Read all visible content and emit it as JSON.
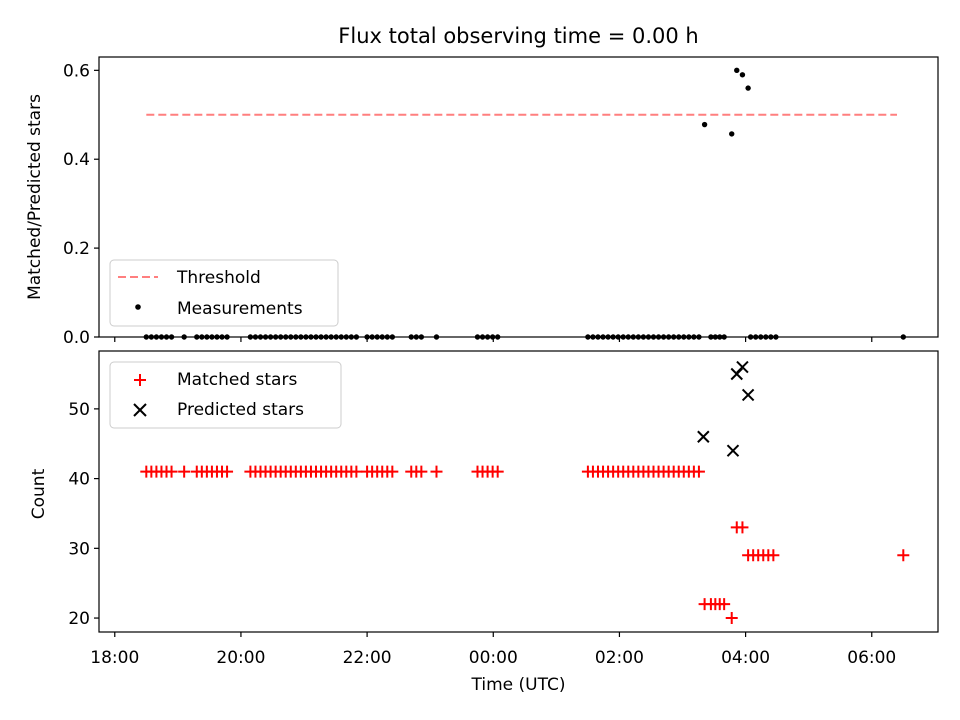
{
  "chart_data": [
    {
      "type": "scatter",
      "title": "Flux total observing time = 0.00 h",
      "xlabel": "",
      "ylabel": "Matched/Predicted stars",
      "xlim": [
        -0.25,
        13.05
      ],
      "ylim": [
        0.0,
        0.63
      ],
      "x_tick_values": [
        0,
        2,
        4,
        6,
        8,
        10,
        12
      ],
      "y_ticks": [
        0.0,
        0.2,
        0.4,
        0.6
      ],
      "y_tick_labels": [
        "0.0",
        "0.2",
        "0.4",
        "0.6"
      ],
      "threshold": {
        "name": "Threshold",
        "value": 0.5,
        "x_range": [
          0.5,
          12.4
        ],
        "color": "#ff7f7f"
      },
      "series": [
        {
          "name": "Measurements",
          "color": "#000000",
          "points": [
            [
              0.5,
              0
            ],
            [
              0.58,
              0
            ],
            [
              0.66,
              0
            ],
            [
              0.74,
              0
            ],
            [
              0.82,
              0
            ],
            [
              0.9,
              0
            ],
            [
              1.1,
              0
            ],
            [
              1.3,
              0
            ],
            [
              1.38,
              0
            ],
            [
              1.46,
              0
            ],
            [
              1.54,
              0
            ],
            [
              1.62,
              0
            ],
            [
              1.7,
              0
            ],
            [
              1.78,
              0
            ],
            [
              2.15,
              0
            ],
            [
              2.23,
              0
            ],
            [
              2.31,
              0
            ],
            [
              2.39,
              0
            ],
            [
              2.47,
              0
            ],
            [
              2.55,
              0
            ],
            [
              2.63,
              0
            ],
            [
              2.71,
              0
            ],
            [
              2.79,
              0
            ],
            [
              2.87,
              0
            ],
            [
              2.95,
              0
            ],
            [
              3.03,
              0
            ],
            [
              3.11,
              0
            ],
            [
              3.19,
              0
            ],
            [
              3.27,
              0
            ],
            [
              3.35,
              0
            ],
            [
              3.43,
              0
            ],
            [
              3.51,
              0
            ],
            [
              3.59,
              0
            ],
            [
              3.67,
              0
            ],
            [
              3.75,
              0
            ],
            [
              3.83,
              0
            ],
            [
              4.0,
              0
            ],
            [
              4.08,
              0
            ],
            [
              4.16,
              0
            ],
            [
              4.24,
              0
            ],
            [
              4.32,
              0
            ],
            [
              4.4,
              0
            ],
            [
              4.7,
              0
            ],
            [
              4.78,
              0
            ],
            [
              4.86,
              0
            ],
            [
              5.1,
              0
            ],
            [
              5.75,
              0
            ],
            [
              5.83,
              0
            ],
            [
              5.91,
              0
            ],
            [
              5.99,
              0
            ],
            [
              6.07,
              0
            ],
            [
              7.5,
              0
            ],
            [
              7.58,
              0
            ],
            [
              7.66,
              0
            ],
            [
              7.74,
              0
            ],
            [
              7.82,
              0
            ],
            [
              7.9,
              0
            ],
            [
              7.98,
              0
            ],
            [
              8.06,
              0
            ],
            [
              8.14,
              0
            ],
            [
              8.22,
              0
            ],
            [
              8.3,
              0
            ],
            [
              8.38,
              0
            ],
            [
              8.46,
              0
            ],
            [
              8.54,
              0
            ],
            [
              8.62,
              0
            ],
            [
              8.7,
              0
            ],
            [
              8.78,
              0
            ],
            [
              8.86,
              0
            ],
            [
              8.94,
              0
            ],
            [
              9.02,
              0
            ],
            [
              9.1,
              0
            ],
            [
              9.18,
              0
            ],
            [
              9.26,
              0
            ],
            [
              9.35,
              0.478
            ],
            [
              9.45,
              0
            ],
            [
              9.52,
              0
            ],
            [
              9.59,
              0
            ],
            [
              9.66,
              0
            ],
            [
              9.78,
              0.457
            ],
            [
              9.86,
              0.6
            ],
            [
              9.95,
              0.59
            ],
            [
              10.04,
              0.56
            ],
            [
              10.08,
              0
            ],
            [
              10.16,
              0
            ],
            [
              10.24,
              0
            ],
            [
              10.32,
              0
            ],
            [
              10.4,
              0
            ],
            [
              10.48,
              0
            ],
            [
              12.5,
              0
            ]
          ]
        }
      ],
      "legend": {
        "location": "lower-left",
        "entries": [
          "Threshold",
          "Measurements"
        ]
      }
    },
    {
      "type": "scatter",
      "title": "",
      "xlabel": "Time (UTC)",
      "ylabel": "Count",
      "xlim": [
        -0.25,
        13.05
      ],
      "ylim": [
        18.0,
        58.3
      ],
      "x_ticks": [
        0,
        2,
        4,
        6,
        8,
        10,
        12
      ],
      "x_tick_labels": [
        "18:00",
        "20:00",
        "22:00",
        "00:00",
        "02:00",
        "04:00",
        "06:00"
      ],
      "y_ticks": [
        20,
        30,
        40,
        50
      ],
      "y_tick_labels": [
        "20",
        "30",
        "40",
        "50"
      ],
      "series": [
        {
          "name": "Matched stars",
          "marker": "plus",
          "color": "#ff0000",
          "points": [
            [
              0.5,
              41
            ],
            [
              0.58,
              41
            ],
            [
              0.66,
              41
            ],
            [
              0.74,
              41
            ],
            [
              0.82,
              41
            ],
            [
              0.9,
              41
            ],
            [
              1.1,
              41
            ],
            [
              1.3,
              41
            ],
            [
              1.38,
              41
            ],
            [
              1.46,
              41
            ],
            [
              1.54,
              41
            ],
            [
              1.62,
              41
            ],
            [
              1.7,
              41
            ],
            [
              1.78,
              41
            ],
            [
              2.15,
              41
            ],
            [
              2.23,
              41
            ],
            [
              2.31,
              41
            ],
            [
              2.39,
              41
            ],
            [
              2.47,
              41
            ],
            [
              2.55,
              41
            ],
            [
              2.63,
              41
            ],
            [
              2.71,
              41
            ],
            [
              2.79,
              41
            ],
            [
              2.87,
              41
            ],
            [
              2.95,
              41
            ],
            [
              3.03,
              41
            ],
            [
              3.11,
              41
            ],
            [
              3.19,
              41
            ],
            [
              3.27,
              41
            ],
            [
              3.35,
              41
            ],
            [
              3.43,
              41
            ],
            [
              3.51,
              41
            ],
            [
              3.59,
              41
            ],
            [
              3.67,
              41
            ],
            [
              3.75,
              41
            ],
            [
              3.83,
              41
            ],
            [
              4.0,
              41
            ],
            [
              4.08,
              41
            ],
            [
              4.16,
              41
            ],
            [
              4.24,
              41
            ],
            [
              4.32,
              41
            ],
            [
              4.4,
              41
            ],
            [
              4.7,
              41
            ],
            [
              4.78,
              41
            ],
            [
              4.86,
              41
            ],
            [
              5.1,
              41
            ],
            [
              5.75,
              41
            ],
            [
              5.83,
              41
            ],
            [
              5.91,
              41
            ],
            [
              5.99,
              41
            ],
            [
              6.07,
              41
            ],
            [
              7.5,
              41
            ],
            [
              7.58,
              41
            ],
            [
              7.66,
              41
            ],
            [
              7.74,
              41
            ],
            [
              7.82,
              41
            ],
            [
              7.9,
              41
            ],
            [
              7.98,
              41
            ],
            [
              8.06,
              41
            ],
            [
              8.14,
              41
            ],
            [
              8.22,
              41
            ],
            [
              8.3,
              41
            ],
            [
              8.38,
              41
            ],
            [
              8.46,
              41
            ],
            [
              8.54,
              41
            ],
            [
              8.62,
              41
            ],
            [
              8.7,
              41
            ],
            [
              8.78,
              41
            ],
            [
              8.86,
              41
            ],
            [
              8.94,
              41
            ],
            [
              9.02,
              41
            ],
            [
              9.1,
              41
            ],
            [
              9.18,
              41
            ],
            [
              9.26,
              41
            ],
            [
              9.35,
              22
            ],
            [
              9.45,
              22
            ],
            [
              9.52,
              22
            ],
            [
              9.59,
              22
            ],
            [
              9.66,
              22
            ],
            [
              9.78,
              20
            ],
            [
              9.86,
              33
            ],
            [
              9.95,
              33
            ],
            [
              10.04,
              29
            ],
            [
              10.12,
              29
            ],
            [
              10.2,
              29
            ],
            [
              10.28,
              29
            ],
            [
              10.36,
              29
            ],
            [
              10.44,
              29
            ],
            [
              12.5,
              29
            ]
          ]
        },
        {
          "name": "Predicted stars",
          "marker": "x",
          "color": "#000000",
          "points": [
            [
              9.33,
              46
            ],
            [
              9.8,
              44
            ],
            [
              9.86,
              55
            ],
            [
              9.95,
              56
            ],
            [
              10.04,
              52
            ]
          ]
        }
      ],
      "legend": {
        "location": "top-left",
        "entries": [
          "Matched stars",
          "Predicted stars"
        ]
      }
    }
  ]
}
